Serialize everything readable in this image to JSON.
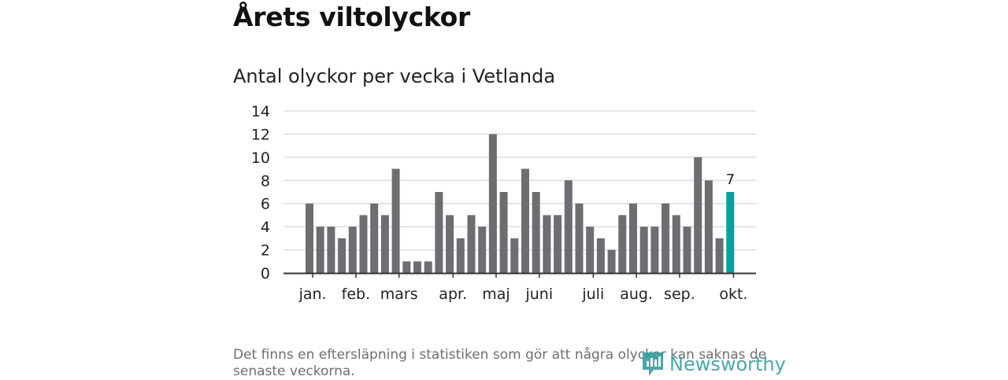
{
  "headline": "Årets viltolyckor",
  "subtitle": "Antal olyckor per vecka i Vetlanda",
  "footnote": "Det finns en eftersläpning i statistiken som gör att några olyckor kan saknas de senaste veckorna.",
  "logo_text": "Newsworthy",
  "colors": {
    "bar": "#6d6d72",
    "highlight": "#00a39a",
    "grid": "#dddddd",
    "axis": "#333333",
    "logo": "#2a9a9a"
  },
  "chart_data": {
    "type": "bar",
    "title": "Antal olyckor per vecka i Vetlanda",
    "xlabel": "",
    "ylabel": "",
    "ylim": [
      0,
      14
    ],
    "yticks": [
      0,
      2,
      4,
      6,
      8,
      10,
      12,
      14
    ],
    "grid": true,
    "weeks": [
      1,
      2,
      3,
      4,
      5,
      6,
      7,
      8,
      9,
      10,
      11,
      12,
      13,
      14,
      15,
      16,
      17,
      18,
      19,
      20,
      21,
      22,
      23,
      24,
      25,
      26,
      27,
      28,
      29,
      30,
      31,
      32,
      33,
      34,
      35,
      36,
      37,
      38,
      39,
      40
    ],
    "values": [
      6,
      4,
      4,
      3,
      4,
      5,
      6,
      5,
      9,
      1,
      1,
      1,
      7,
      5,
      3,
      5,
      4,
      12,
      7,
      3,
      9,
      7,
      5,
      5,
      8,
      6,
      4,
      3,
      2,
      5,
      6,
      4,
      4,
      6,
      5,
      4,
      10,
      8,
      3,
      7
    ],
    "highlight_index": 39,
    "highlight_label": "7",
    "month_labels": [
      {
        "label": "jan.",
        "week": 1.3
      },
      {
        "label": "feb.",
        "week": 5.3
      },
      {
        "label": "mars",
        "week": 9.3
      },
      {
        "label": "apr.",
        "week": 14.3
      },
      {
        "label": "maj",
        "week": 18.3
      },
      {
        "label": "juni",
        "week": 22.3
      },
      {
        "label": "juli",
        "week": 27.3
      },
      {
        "label": "aug.",
        "week": 31.3
      },
      {
        "label": "sep.",
        "week": 35.3
      },
      {
        "label": "okt.",
        "week": 40.3
      }
    ]
  }
}
